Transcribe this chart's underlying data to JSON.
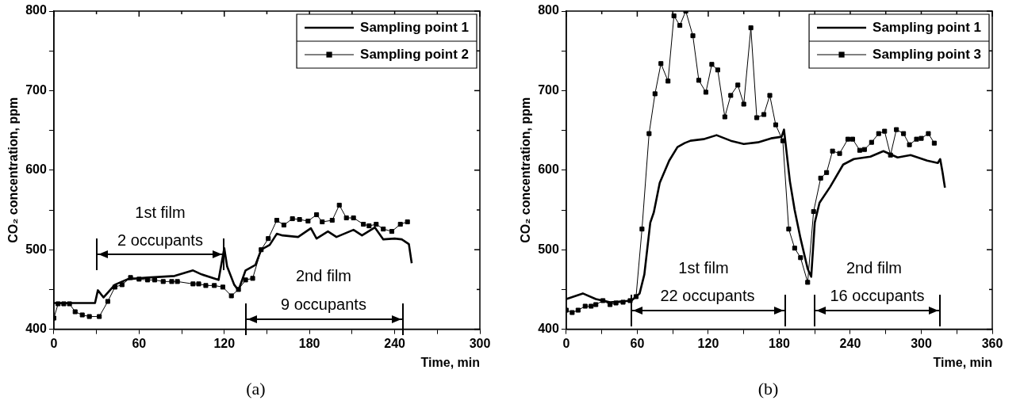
{
  "chart_data": [
    {
      "type": "line",
      "xlabel": "Time, min",
      "ylabel": "CO₂ concentration, ppm",
      "xlim": [
        0,
        300
      ],
      "xticks": [
        0,
        {
          "value": 30,
          "label": null
        },
        60,
        {
          "value": 90,
          "label": null
        },
        120,
        {
          "value": 150,
          "label": null
        },
        180,
        {
          "value": 210,
          "label": null
        },
        240,
        {
          "value": 270,
          "label": null
        },
        300
      ],
      "ylim": [
        400,
        800
      ],
      "yticks": [
        400,
        {
          "value": 450,
          "label": null
        },
        500,
        {
          "value": 550,
          "label": null
        },
        600,
        {
          "value": 650,
          "label": null
        },
        700,
        {
          "value": 750,
          "label": null
        },
        800
      ],
      "grid": false,
      "legend": "top right",
      "series": [
        {
          "name": "Sampling point 1",
          "color": "#000000",
          "marker": "none",
          "x": [
            0,
            29,
            31,
            35,
            39,
            43,
            52,
            66,
            85,
            98,
            104,
            116,
            120,
            122,
            127,
            130,
            135,
            142,
            146,
            152,
            157,
            161,
            172,
            181,
            185,
            193,
            199,
            211,
            217,
            226,
            232,
            240,
            245,
            250,
            252
          ],
          "values": [
            433,
            433,
            449,
            440,
            448,
            456,
            463,
            465,
            467,
            474,
            469,
            462,
            502,
            479,
            456,
            449,
            474,
            481,
            500,
            506,
            520,
            518,
            516,
            527,
            514,
            523,
            516,
            525,
            518,
            528,
            513,
            514,
            513,
            507,
            483
          ]
        },
        {
          "name": "Sampling point 2",
          "color": "#000000",
          "marker": "square",
          "x": [
            0,
            3,
            7,
            11,
            15,
            20,
            25,
            32,
            38,
            43,
            48,
            54,
            60,
            66,
            71,
            77,
            83,
            87,
            98,
            102,
            107,
            113,
            119,
            125,
            130,
            135,
            140,
            146,
            151,
            157,
            162,
            168,
            173,
            179,
            185,
            189,
            196,
            201,
            206,
            211,
            218,
            222,
            227,
            232,
            238,
            244,
            249
          ],
          "values": [
            414,
            432,
            432,
            432,
            422,
            418,
            416,
            416,
            435,
            453,
            456,
            465,
            463,
            462,
            462,
            460,
            460,
            460,
            457,
            457,
            455,
            455,
            453,
            442,
            450,
            462,
            464,
            500,
            514,
            537,
            531,
            539,
            538,
            536,
            544,
            535,
            537,
            556,
            540,
            540,
            532,
            530,
            532,
            526,
            523,
            532,
            535
          ]
        }
      ],
      "annotations": [
        "1st film",
        "2 occupants",
        "2nd film",
        "9 occupants",
        "(a)"
      ]
    },
    {
      "type": "line",
      "xlabel": "Time, min",
      "ylabel": "CO₂ concentration, ppm",
      "xlim": [
        0,
        360
      ],
      "xticks": [
        0,
        {
          "value": 30,
          "label": null
        },
        60,
        {
          "value": 90,
          "label": null
        },
        120,
        {
          "value": 150,
          "label": null
        },
        180,
        {
          "value": 210,
          "label": null
        },
        240,
        {
          "value": 270,
          "label": null
        },
        300,
        {
          "value": 330,
          "label": null
        },
        360
      ],
      "ylim": [
        400,
        800
      ],
      "yticks": [
        400,
        {
          "value": 450,
          "label": null
        },
        500,
        {
          "value": 550,
          "label": null
        },
        600,
        {
          "value": 650,
          "label": null
        },
        700,
        {
          "value": 750,
          "label": null
        },
        800
      ],
      "grid": false,
      "legend": "top right",
      "series": [
        {
          "name": "Sampling point 1",
          "color": "#000000",
          "marker": "none",
          "x": [
            0,
            14,
            25,
            37,
            55,
            62,
            66,
            71,
            74,
            79,
            87,
            94,
            100,
            105,
            116,
            127,
            139,
            150,
            162,
            173,
            182,
            184,
            189,
            193,
            198,
            204,
            207,
            210,
            214,
            223,
            234,
            243,
            257,
            268,
            280,
            291,
            305,
            314,
            316,
            318,
            320
          ],
          "values": [
            438,
            445,
            438,
            434,
            436,
            445,
            469,
            534,
            547,
            584,
            612,
            629,
            634,
            637,
            639,
            644,
            637,
            633,
            635,
            640,
            642,
            651,
            586,
            550,
            514,
            476,
            466,
            534,
            559,
            579,
            607,
            614,
            617,
            624,
            616,
            619,
            612,
            609,
            614,
            597,
            578
          ]
        },
        {
          "name": "Sampling point 3",
          "color": "#000000",
          "marker": "square",
          "x": [
            0,
            5,
            10,
            16,
            21,
            25,
            31,
            37,
            42,
            48,
            54,
            59,
            64,
            70,
            75,
            80,
            86,
            91,
            96,
            101,
            107,
            112,
            118,
            123,
            128,
            134,
            139,
            145,
            150,
            156,
            161,
            167,
            172,
            177,
            183,
            188,
            193,
            198,
            204,
            209,
            215,
            220,
            225,
            231,
            238,
            242,
            248,
            252,
            258,
            264,
            269,
            274,
            279,
            285,
            290,
            296,
            300,
            306,
            311
          ],
          "values": [
            424,
            421,
            424,
            429,
            429,
            431,
            436,
            431,
            433,
            434,
            436,
            441,
            526,
            646,
            696,
            734,
            712,
            794,
            782,
            800,
            769,
            713,
            698,
            733,
            726,
            667,
            694,
            707,
            683,
            779,
            666,
            670,
            694,
            657,
            637,
            526,
            502,
            490,
            459,
            548,
            590,
            597,
            624,
            621,
            639,
            639,
            625,
            626,
            635,
            646,
            649,
            619,
            651,
            646,
            632,
            639,
            640,
            646,
            634
          ]
        }
      ],
      "annotations": [
        "1st film",
        "22 occupants",
        "2nd film",
        "16 occupants",
        "(b)"
      ]
    }
  ]
}
